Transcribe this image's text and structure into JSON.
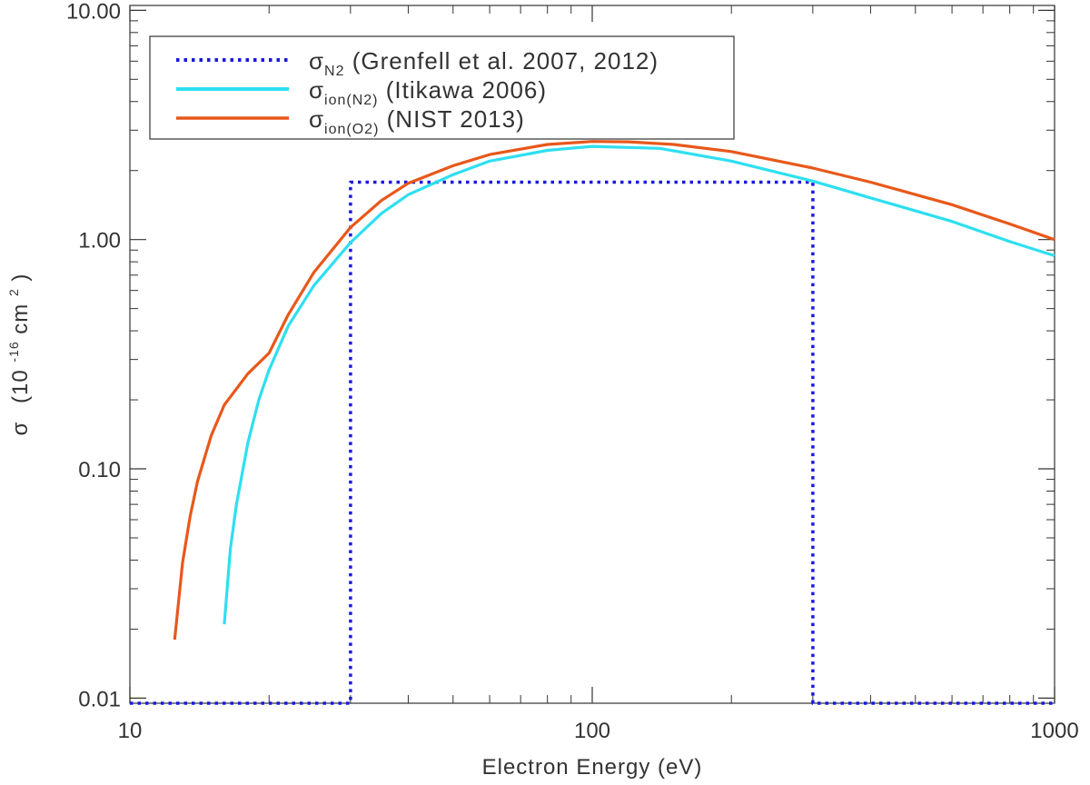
{
  "chart_data": {
    "type": "line",
    "xlabel": "Electron Energy (eV)",
    "ylabel_main": "σ",
    "ylabel_unit_pre": "(10",
    "ylabel_unit_exp": "-16",
    "ylabel_unit_mid": " cm",
    "ylabel_unit_exp2": "2",
    "ylabel_unit_post": ")",
    "x_scale": "log",
    "y_scale": "log",
    "xlim": [
      10,
      1000
    ],
    "ylim": [
      0.0095,
      10.5
    ],
    "x_tick_labels": [
      {
        "value": 10,
        "label": "10"
      },
      {
        "value": 100,
        "label": "100"
      },
      {
        "value": 1000,
        "label": "1000"
      }
    ],
    "y_tick_labels": [
      {
        "value": 0.01,
        "label": "0.01"
      },
      {
        "value": 0.1,
        "label": "0.10"
      },
      {
        "value": 1,
        "label": "1.00"
      },
      {
        "value": 10,
        "label": "10.00"
      }
    ],
    "grid": false,
    "legend_position": "top-left",
    "series": [
      {
        "id": "n2",
        "legend_main": "σ",
        "legend_sub": "N2",
        "legend_rest": " (Grenfell et al. 2007, 2012)",
        "color": "#1a1adc",
        "style": "dotted",
        "x": [
          10,
          30,
          30,
          300,
          300,
          1000
        ],
        "y": [
          0.0095,
          0.0095,
          1.78,
          1.78,
          0.0095,
          0.0095
        ]
      },
      {
        "id": "ion_n2",
        "legend_main": "σ",
        "legend_sub": "ion(N2)",
        "legend_rest": " (Itikawa 2006)",
        "color": "#2edff0",
        "style": "solid",
        "x": [
          16,
          16.5,
          17,
          18,
          19,
          20,
          22,
          25,
          30,
          35,
          40,
          50,
          60,
          80,
          100,
          140,
          200,
          300,
          400,
          600,
          800,
          1000
        ],
        "y": [
          0.021,
          0.045,
          0.07,
          0.13,
          0.2,
          0.27,
          0.42,
          0.63,
          0.97,
          1.3,
          1.57,
          1.92,
          2.2,
          2.45,
          2.55,
          2.5,
          2.2,
          1.8,
          1.52,
          1.2,
          0.98,
          0.85
        ]
      },
      {
        "id": "ion_o2",
        "legend_main": "σ",
        "legend_sub": "ion(O2)",
        "legend_rest": " (NIST 2013)",
        "color": "#e8581a",
        "style": "solid",
        "x": [
          12.5,
          13,
          13.5,
          14,
          15,
          16,
          18,
          20,
          22,
          25,
          30,
          35,
          40,
          50,
          60,
          80,
          100,
          120,
          150,
          200,
          300,
          400,
          600,
          800,
          1000
        ],
        "y": [
          0.018,
          0.039,
          0.062,
          0.088,
          0.14,
          0.19,
          0.26,
          0.32,
          0.47,
          0.72,
          1.13,
          1.48,
          1.76,
          2.1,
          2.35,
          2.6,
          2.68,
          2.67,
          2.6,
          2.42,
          2.05,
          1.78,
          1.42,
          1.17,
          1.0
        ]
      }
    ]
  }
}
